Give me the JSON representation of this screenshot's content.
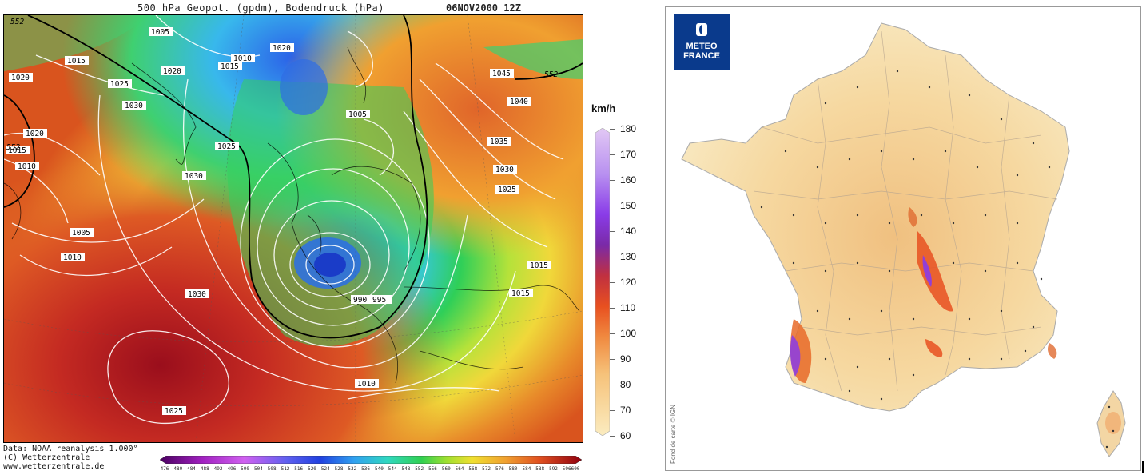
{
  "left_map": {
    "title": "500 hPa Geopot. (gpdm), Bodendruck (hPa)",
    "date": "06NOV2000 12Z",
    "credit_lines": [
      "Data: NOAA reanalysis 1.000°",
      "(C) Wetterzentrale",
      "www.wetterzentrale.de"
    ],
    "geopot_labels": [
      "552",
      "552",
      "552"
    ],
    "isobar_labels": [
      "1005",
      "1015",
      "1010",
      "1020",
      "1020",
      "1015",
      "1025",
      "1030",
      "1020",
      "1015",
      "1010",
      "1025",
      "1030",
      "1020",
      "1045",
      "1040",
      "1005",
      "1035",
      "1030",
      "1025",
      "1005",
      "1010",
      "1030",
      "1015",
      "1015",
      "990",
      "995",
      "1010",
      "1025"
    ],
    "colorbar_ticks": [
      "476",
      "480",
      "484",
      "488",
      "492",
      "496",
      "500",
      "504",
      "508",
      "512",
      "516",
      "520",
      "524",
      "528",
      "532",
      "536",
      "540",
      "544",
      "548",
      "552",
      "556",
      "560",
      "564",
      "568",
      "572",
      "576",
      "580",
      "584",
      "588",
      "592",
      "596",
      "600"
    ]
  },
  "right_map": {
    "logo_line1": "METEO",
    "logo_line2": "FRANCE",
    "unit": "km/h",
    "legend_labels": [
      "180",
      "170",
      "160",
      "150",
      "140",
      "130",
      "120",
      "110",
      "100",
      "90",
      "80",
      "70",
      "60"
    ],
    "fond": "Fond de carte © IGN"
  },
  "colors": {
    "low_center": "#2a4fe0",
    "ridge": "#a8121e",
    "green": "#2fcf58",
    "yellow": "#f0d83a",
    "orange": "#e88a2a",
    "france_fill": "#f7e2b0",
    "meteo_france_blue": "#0a3a8c"
  }
}
